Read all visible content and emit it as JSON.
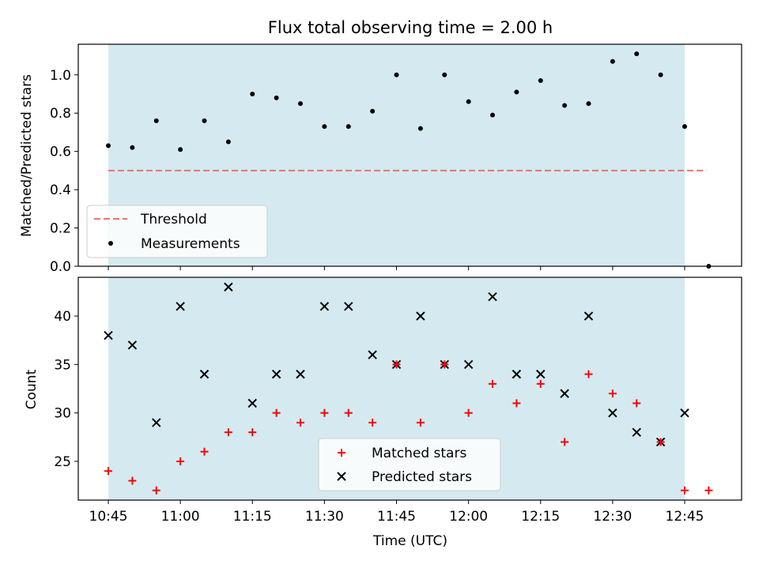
{
  "chart_data": [
    {
      "type": "scatter",
      "title": "Flux total observing time = 2.00 h",
      "ylabel": "Matched/Predicted stars",
      "ylim": [
        0,
        1.16
      ],
      "yticks": [
        "0.0",
        "0.2",
        "0.4",
        "0.6",
        "0.8",
        "1.0"
      ],
      "shaded_span": [
        "10:45",
        "12:45"
      ],
      "threshold": {
        "name": "Threshold",
        "y": 0.5,
        "from": "10:45",
        "to": "12:50",
        "color": "#f07070"
      },
      "series": [
        {
          "name": "Measurements",
          "color": "#000000",
          "x": [
            "10:45",
            "10:50",
            "10:55",
            "11:00",
            "11:05",
            "11:10",
            "11:15",
            "11:20",
            "11:25",
            "11:30",
            "11:35",
            "11:40",
            "11:45",
            "11:50",
            "11:55",
            "12:00",
            "12:05",
            "12:10",
            "12:15",
            "12:20",
            "12:25",
            "12:30",
            "12:35",
            "12:40",
            "12:45",
            "12:50"
          ],
          "values": [
            0.63,
            0.62,
            0.76,
            0.61,
            0.76,
            0.65,
            0.9,
            0.88,
            0.85,
            0.73,
            0.73,
            0.81,
            1.0,
            0.72,
            1.0,
            0.86,
            0.79,
            0.91,
            0.97,
            0.84,
            0.85,
            1.07,
            1.11,
            1.0,
            0.73,
            0.0
          ]
        }
      ],
      "legend": {
        "location": "lower-left"
      }
    },
    {
      "type": "scatter",
      "xlabel": "Time (UTC)",
      "ylabel": "Count",
      "ylim": [
        21,
        44
      ],
      "yticks": [
        "25",
        "30",
        "35",
        "40"
      ],
      "xticks": [
        "10:45",
        "11:00",
        "11:15",
        "11:30",
        "11:45",
        "12:00",
        "12:15",
        "12:30",
        "12:45"
      ],
      "shaded_span": [
        "10:45",
        "12:45"
      ],
      "series": [
        {
          "name": "Matched stars",
          "marker": "+",
          "color": "#ff0000",
          "x": [
            "10:45",
            "10:50",
            "10:55",
            "11:00",
            "11:05",
            "11:10",
            "11:15",
            "11:20",
            "11:25",
            "11:30",
            "11:35",
            "11:40",
            "11:45",
            "11:50",
            "11:55",
            "12:00",
            "12:05",
            "12:10",
            "12:15",
            "12:20",
            "12:25",
            "12:30",
            "12:35",
            "12:40",
            "12:45",
            "12:50"
          ],
          "values": [
            24,
            23,
            22,
            25,
            26,
            28,
            28,
            30,
            29,
            30,
            30,
            29,
            35,
            29,
            35,
            30,
            33,
            31,
            33,
            27,
            34,
            32,
            31,
            27,
            22,
            22
          ]
        },
        {
          "name": "Predicted stars",
          "marker": "x",
          "color": "#000000",
          "x": [
            "10:45",
            "10:50",
            "10:55",
            "11:00",
            "11:05",
            "11:10",
            "11:15",
            "11:20",
            "11:25",
            "11:30",
            "11:35",
            "11:40",
            "11:45",
            "11:50",
            "11:55",
            "12:00",
            "12:05",
            "12:10",
            "12:15",
            "12:20",
            "12:25",
            "12:30",
            "12:35",
            "12:40",
            "12:45"
          ],
          "values": [
            38,
            37,
            29,
            41,
            34,
            43,
            31,
            34,
            34,
            41,
            41,
            36,
            35,
            40,
            35,
            35,
            42,
            34,
            34,
            32,
            40,
            30,
            28,
            27,
            30
          ]
        }
      ],
      "legend": {
        "location": "lower-center"
      }
    }
  ],
  "colors": {
    "shade": "#d4eaf0"
  }
}
